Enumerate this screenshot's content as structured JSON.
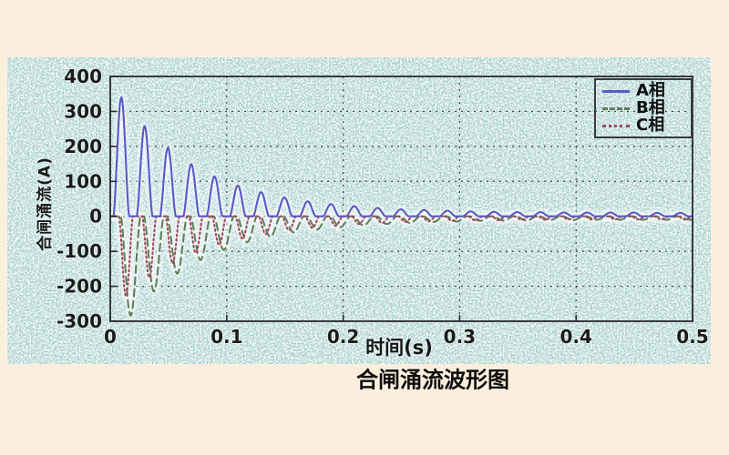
{
  "figure": {
    "caption": "合闸涌流波形图"
  },
  "chart_data": {
    "type": "line",
    "title": "",
    "xlabel": "时间(s)",
    "ylabel": "合闸涌流(A)",
    "xlim": [
      0,
      0.5
    ],
    "ylim": [
      -300,
      400
    ],
    "xticks": [
      "0",
      "0.1",
      "0.2",
      "0.3",
      "0.4",
      "0.5"
    ],
    "yticks": [
      "400",
      "300",
      "200",
      "100",
      "0",
      "-100",
      "-200",
      "-300"
    ],
    "xtick_values": [
      0,
      0.1,
      0.2,
      0.3,
      0.4,
      0.5
    ],
    "ytick_values": [
      400,
      300,
      200,
      100,
      0,
      -100,
      -200,
      -300
    ],
    "grid": true,
    "legend_position": "top-right",
    "panel_background": "#a3d0cd",
    "page_background": "#fceedd",
    "axis_color": "#2a2a2a",
    "period_s": 0.02,
    "description": "Decaying transformer closing inrush current pulses, one pulse per 20 ms cycle; phase A positive, phases B and C negative.",
    "series": [
      {
        "name": "A相",
        "color": "#5a58c8",
        "style": "solid",
        "sign": 1,
        "first_center_s": 0.0095,
        "pulse_half_width_s": 0.0068,
        "peaks": [
          340,
          258,
          196,
          149,
          114,
          88,
          69,
          54,
          43,
          35,
          29,
          24,
          20,
          18,
          16,
          14,
          13,
          12,
          12,
          11,
          11,
          11,
          11,
          10,
          10
        ]
      },
      {
        "name": "B相",
        "color": "#5f7f5a",
        "style": "dashed",
        "sign": -1,
        "first_center_s": 0.0175,
        "pulse_half_width_s": 0.0085,
        "peaks": [
          284,
          215,
          164,
          125,
          96,
          74,
          58,
          46,
          38,
          31,
          26,
          22,
          19,
          16,
          15,
          13,
          12,
          12,
          11,
          11,
          10,
          10,
          10,
          10,
          10
        ]
      },
      {
        "name": "C相",
        "color": "#a04a5c",
        "style": "dashdot",
        "sign": -1,
        "first_center_s": 0.0135,
        "pulse_half_width_s": 0.006,
        "peaks": [
          228,
          175,
          135,
          105,
          82,
          64,
          51,
          40,
          33,
          27,
          22,
          19,
          16,
          14,
          13,
          12,
          11,
          10,
          10,
          9,
          9,
          9,
          9,
          9,
          9
        ]
      }
    ]
  }
}
